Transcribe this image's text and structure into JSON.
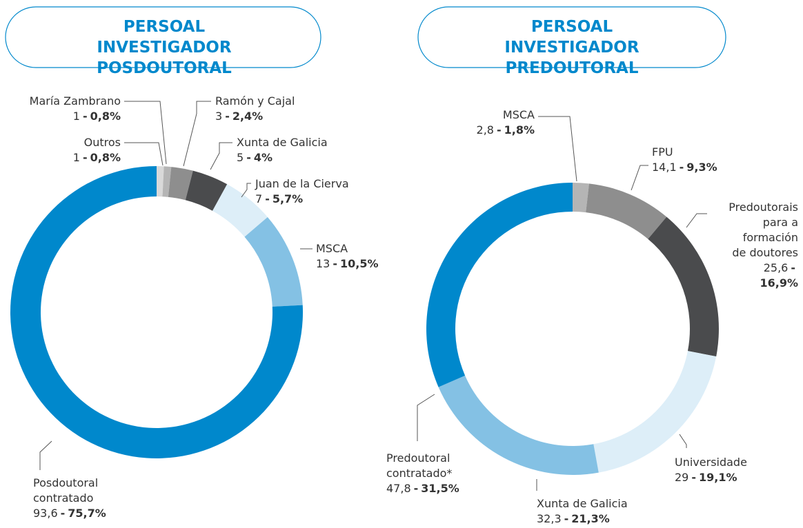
{
  "chart_data": [
    {
      "type": "pie",
      "title": "PERSOAL INVESTIGADOR POSDOUTORAL",
      "donut": true,
      "label_separator": "-",
      "categories": [
        "Outros",
        "María Zambrano",
        "Ramón y Cajal",
        "Xunta de Galicia",
        "Juan de la Cierva",
        "MSCA",
        "Posdoutoral contratado"
      ],
      "counts": [
        1,
        1,
        3,
        5,
        7,
        13,
        93.6
      ],
      "count_labels": [
        "1",
        "1",
        "3",
        "5",
        "7",
        "13",
        "93,6"
      ],
      "values": [
        0.8,
        0.8,
        2.4,
        4,
        5.7,
        10.5,
        75.7
      ],
      "value_labels": [
        "0,8%",
        "0,8%",
        "2,4%",
        "4%",
        "5,7%",
        "10,5%",
        "75,7%"
      ],
      "colors": [
        "#d9d9d9",
        "#b5b5b5",
        "#8e8e8e",
        "#4a4b4d",
        "#ddeef8",
        "#84c1e4",
        "#0088cc"
      ]
    },
    {
      "type": "pie",
      "title": "PERSOAL INVESTIGADOR PREDOUTORAL",
      "donut": true,
      "label_separator": "-",
      "categories": [
        "MSCA",
        "FPU",
        "Predoutorais para a formación de doutores",
        "Universidade",
        "Xunta de Galicia",
        "Predoutoral contratado*"
      ],
      "counts": [
        2.8,
        14.1,
        25.6,
        29,
        32.3,
        47.8
      ],
      "count_labels": [
        "2,8",
        "14,1",
        "25,6",
        "29",
        "32,3",
        "47,8"
      ],
      "values": [
        1.8,
        9.3,
        16.9,
        19.1,
        21.3,
        31.5
      ],
      "value_labels": [
        "1,8%",
        "9,3%",
        "16,9%",
        "19,1%",
        "21,3%",
        "31,5%"
      ],
      "colors": [
        "#b5b5b5",
        "#8e8e8e",
        "#4a4b4d",
        "#ddeef8",
        "#84c1e4",
        "#0088cc"
      ]
    }
  ]
}
